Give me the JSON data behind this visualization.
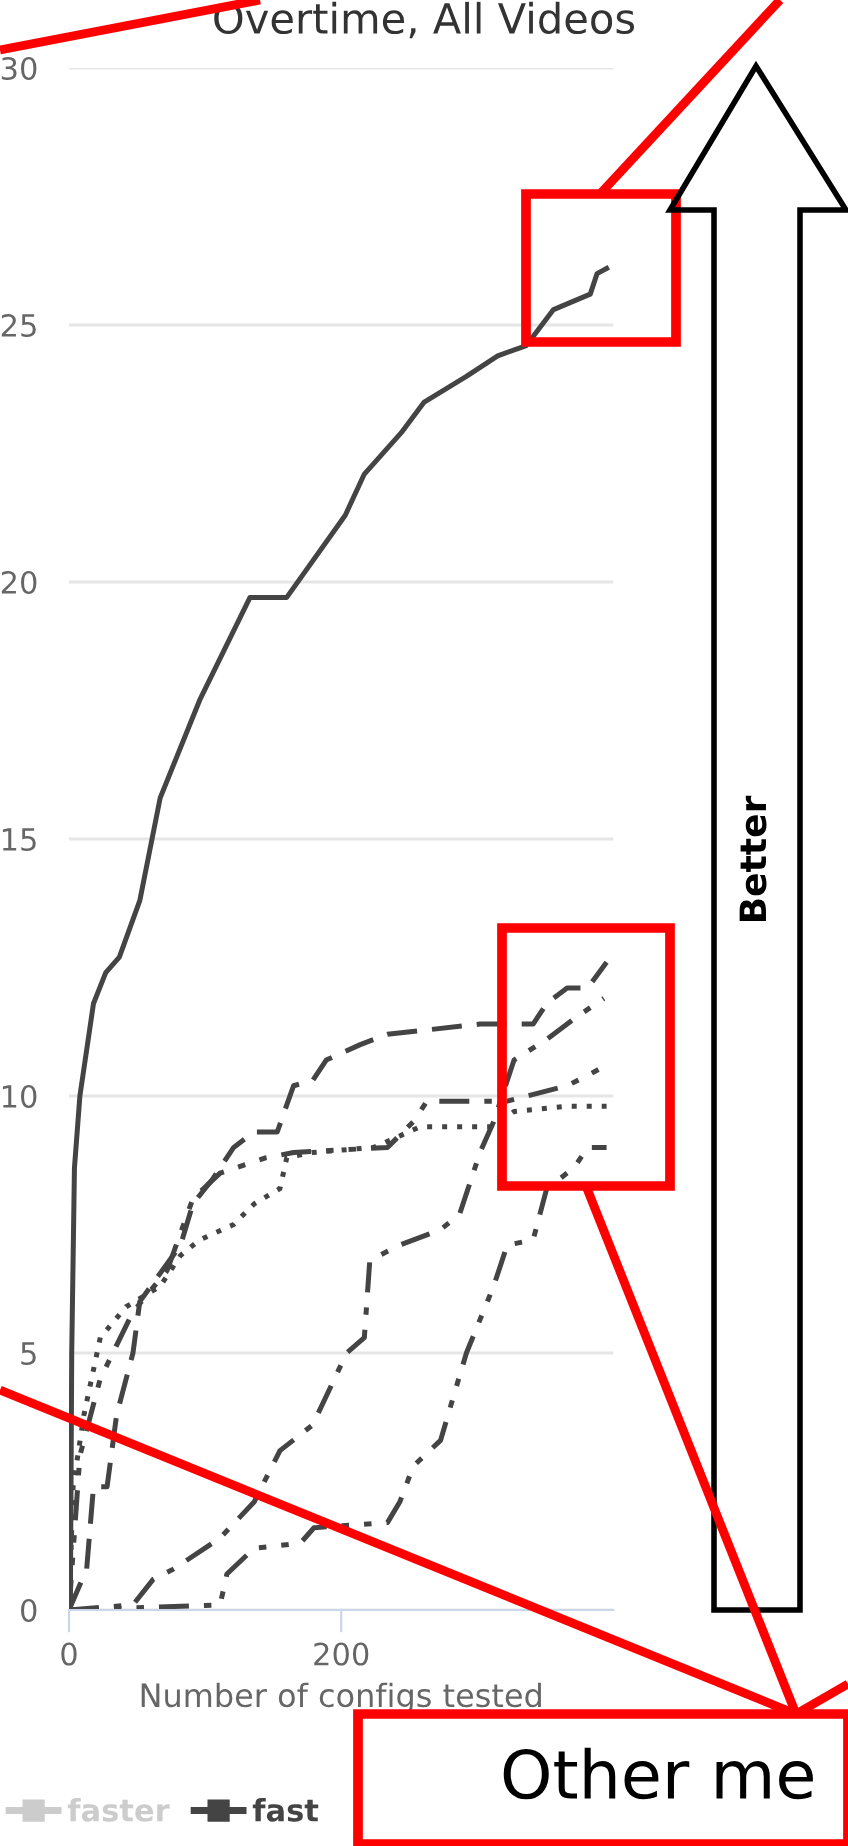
{
  "chart_data": {
    "type": "line",
    "title": "Overtime, All Videos",
    "xlabel": "Number of configs tested",
    "xlim": [
      0,
      400
    ],
    "xticks": [
      0,
      200
    ],
    "ylim": [
      0,
      30
    ],
    "yticks": [
      0,
      5,
      10,
      15,
      20,
      25,
      30
    ],
    "grid": "y",
    "legend": "bottom left",
    "marker": "none",
    "series": [
      {
        "name": "faster",
        "color": "#cccccc"
      },
      {
        "name": "fast",
        "color": "#444444",
        "line_style": "solid",
        "x": [
          0,
          1,
          2,
          4,
          8,
          18,
          27,
          37,
          52,
          67,
          96,
          133,
          160,
          203,
          217,
          244,
          261,
          292,
          315,
          336,
          356,
          383,
          388,
          395
        ],
        "values": [
          0,
          0.1,
          5,
          8.6,
          10,
          11.8,
          12.4,
          12.7,
          13.8,
          15.8,
          17.7,
          19.7,
          19.7,
          21.3,
          22.1,
          22.9,
          23.5,
          24.0,
          24.4,
          24.6,
          25.3,
          25.6,
          26.0,
          26.1
        ]
      },
      {
        "color": "#444444",
        "line_style": "dashed",
        "x": [
          0,
          13,
          18,
          28,
          35,
          47,
          52,
          82,
          91,
          106,
          121,
          136,
          153,
          165,
          179,
          189,
          214,
          234,
          302,
          341,
          351,
          366,
          381,
          395
        ],
        "values": [
          0,
          0.8,
          2.4,
          2.4,
          3.8,
          5,
          6,
          7.1,
          7.9,
          8.4,
          9,
          9.3,
          9.3,
          10.2,
          10.3,
          10.7,
          11,
          11.2,
          11.4,
          11.4,
          11.8,
          12.1,
          12.1,
          12.6
        ]
      },
      {
        "color": "#444444",
        "line_style": "dotted",
        "x": [
          0,
          3,
          11,
          23,
          42,
          67,
          82,
          96,
          121,
          136,
          155,
          160,
          179,
          224,
          258,
          312,
          327,
          366,
          395
        ],
        "values": [
          0,
          2.4,
          3.8,
          5.3,
          5.9,
          6.3,
          6.9,
          7.2,
          7.5,
          7.9,
          8.2,
          8.8,
          8.9,
          9.0,
          9.4,
          9.4,
          9.7,
          9.8,
          9.8
        ]
      },
      {
        "color": "#444444",
        "line_style": "dashdotdot",
        "x": [
          0,
          8,
          23,
          47,
          72,
          91,
          111,
          145,
          165,
          234,
          253,
          263,
          322,
          366,
          381,
          395
        ],
        "values": [
          0,
          3,
          4.5,
          5.8,
          6.6,
          8,
          8.5,
          8.8,
          8.9,
          9.0,
          9.5,
          9.9,
          9.9,
          10.2,
          10.4,
          10.6
        ]
      },
      {
        "color": "#444444",
        "line_style": "dashdot",
        "x": [
          0,
          47,
          62,
          77,
          111,
          136,
          155,
          179,
          204,
          217,
          221,
          243,
          273,
          287,
          302,
          312,
          327,
          351,
          371,
          393
        ],
        "values": [
          0,
          0.1,
          0.6,
          0.8,
          1.4,
          2.1,
          3.1,
          3.6,
          5.0,
          5.3,
          6.8,
          7.1,
          7.4,
          7.7,
          8.9,
          9.5,
          10.7,
          11.1,
          11.5,
          11.9
        ]
      },
      {
        "color": "#444444",
        "line_style": "dashdotdot",
        "x": [
          0,
          111,
          116,
          136,
          170,
          180,
          234,
          243,
          253,
          273,
          283,
          292,
          312,
          322,
          341,
          351,
          371,
          381,
          395
        ],
        "values": [
          0,
          0.1,
          0.7,
          1.2,
          1.3,
          1.6,
          1.7,
          2.1,
          2.8,
          3.3,
          4.2,
          5.0,
          6.3,
          7.1,
          7.2,
          8.2,
          8.6,
          9.0,
          9.0
        ]
      }
    ],
    "annotations": [
      "Better",
      "Other me"
    ]
  }
}
